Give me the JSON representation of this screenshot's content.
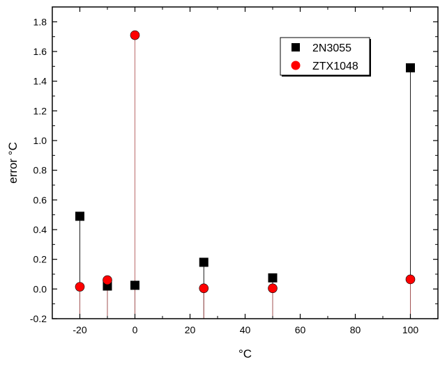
{
  "chart_data": {
    "type": "scatter",
    "title": "",
    "xlabel": "°C",
    "ylabel": "error °C",
    "xlim": [
      -30,
      110
    ],
    "ylim": [
      -0.2,
      1.9
    ],
    "x_ticks": [
      -20,
      0,
      20,
      40,
      60,
      80,
      100
    ],
    "y_ticks": [
      -0.2,
      0.0,
      0.2,
      0.4,
      0.6,
      0.8,
      1.0,
      1.2,
      1.4,
      1.6,
      1.8
    ],
    "x_tick_labels": [
      "-20",
      "0",
      "20",
      "40",
      "60",
      "80",
      "100"
    ],
    "y_tick_labels": [
      "-0.2",
      "0.0",
      "0.2",
      "0.4",
      "0.6",
      "0.8",
      "1.0",
      "1.2",
      "1.4",
      "1.6",
      "1.8"
    ],
    "drop_lines": true,
    "grid": false,
    "legend_position": "top-right",
    "series": [
      {
        "name": "2N3055",
        "marker": "square",
        "color": "#000000",
        "x": [
          -20,
          -10,
          0,
          25,
          50,
          100
        ],
        "y": [
          0.49,
          0.02,
          0.025,
          0.18,
          0.075,
          1.49
        ]
      },
      {
        "name": "ZTX1048",
        "marker": "circle",
        "color": "#ff0000",
        "x": [
          -20,
          -10,
          0,
          25,
          50,
          100
        ],
        "y": [
          0.015,
          0.06,
          1.71,
          0.005,
          0.005,
          0.065
        ]
      }
    ]
  }
}
